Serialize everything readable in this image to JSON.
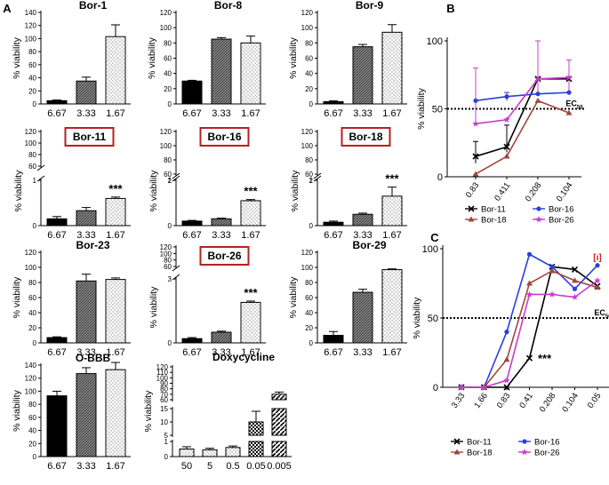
{
  "panel_labels": [
    "A",
    "B",
    "C"
  ],
  "colors": {
    "bor11": "#000000",
    "bor16": "#2b3fe0",
    "bor18": "#a0463c",
    "bor26": "#c83ccc",
    "box": "#b22222"
  },
  "chart_data": [
    {
      "id": "bor1",
      "type": "bar",
      "title": "Bor-1",
      "ylabel": "% viability",
      "categories": [
        "6.67",
        "3.33",
        "1.67"
      ],
      "values": [
        5,
        35,
        103
      ],
      "errors": [
        1,
        6,
        18
      ],
      "ylim": [
        0,
        140
      ],
      "yticks": [
        "0",
        "20",
        "40",
        "60",
        "80",
        "100",
        "120",
        "140"
      ]
    },
    {
      "id": "bor8",
      "type": "bar",
      "title": "Bor-8",
      "ylabel": "% viability",
      "categories": [
        "6.67",
        "3.33",
        "1.67"
      ],
      "values": [
        30,
        85,
        80
      ],
      "errors": [
        1,
        2,
        9
      ],
      "ylim": [
        0,
        120
      ],
      "yticks": [
        "0",
        "20",
        "40",
        "60",
        "80",
        "100",
        "120"
      ]
    },
    {
      "id": "bor9",
      "type": "bar",
      "title": "Bor-9",
      "ylabel": "% viability",
      "categories": [
        "6.67",
        "3.33",
        "1.67"
      ],
      "values": [
        3,
        75,
        94
      ],
      "errors": [
        1,
        3,
        10
      ],
      "ylim": [
        0,
        120
      ],
      "yticks": [
        "0",
        "20",
        "40",
        "60",
        "80",
        "100",
        "120"
      ]
    },
    {
      "id": "bor11",
      "type": "bar",
      "title": "Bor-11",
      "boxed": true,
      "ylabel": "% viability",
      "categories": [
        "6.67",
        "3.33",
        "1.67"
      ],
      "values": [
        0.15,
        0.33,
        0.6
      ],
      "errors": [
        0.05,
        0.07,
        0.03
      ],
      "upper_ticks": [
        "60",
        "80",
        "100",
        "120"
      ],
      "lower_ticks": [
        "0",
        "1"
      ],
      "lower_max": 1,
      "stars": "***"
    },
    {
      "id": "bor16",
      "type": "bar",
      "title": "Bor-16",
      "boxed": true,
      "ylabel": "% viability",
      "categories": [
        "6.67",
        "3.33",
        "1.67"
      ],
      "values": [
        0.2,
        0.3,
        1.1
      ],
      "errors": [
        0.03,
        0.03,
        0.05
      ],
      "upper_ticks": [
        "60",
        "80",
        "100",
        "120"
      ],
      "lower_ticks": [
        "0",
        "1",
        "2"
      ],
      "lower_max": 2,
      "stars": "***"
    },
    {
      "id": "bor18",
      "type": "bar",
      "title": "Bor-18",
      "boxed": true,
      "ylabel": "% viability",
      "categories": [
        "6.67",
        "3.33",
        "1.67"
      ],
      "values": [
        0.15,
        0.5,
        1.3
      ],
      "errors": [
        0.05,
        0.05,
        0.4
      ],
      "upper_ticks": [
        "60",
        "80",
        "100",
        "120"
      ],
      "lower_ticks": [
        "0",
        "1",
        "2"
      ],
      "lower_max": 2,
      "stars": "***"
    },
    {
      "id": "bor23",
      "type": "bar",
      "title": "Bor-23",
      "ylabel": "% viability",
      "categories": [
        "6.67",
        "3.33",
        "1.67"
      ],
      "values": [
        7,
        82,
        84
      ],
      "errors": [
        1,
        9,
        2
      ],
      "ylim": [
        0,
        120
      ],
      "yticks": [
        "0",
        "20",
        "40",
        "60",
        "80",
        "100",
        "120"
      ]
    },
    {
      "id": "bor26",
      "type": "bar",
      "title": "Bor-26",
      "boxed": true,
      "ylabel": "% viability",
      "categories": [
        "6.67",
        "3.33",
        "1.67"
      ],
      "values": [
        0.2,
        0.5,
        1.9
      ],
      "errors": [
        0.05,
        0.05,
        0.06
      ],
      "upper_ticks": [
        "60",
        "80",
        "100",
        "120"
      ],
      "lower_ticks": [
        "0",
        "3"
      ],
      "lower_max": 3,
      "stars": "***"
    },
    {
      "id": "bor29",
      "type": "bar",
      "title": "Bor-29",
      "ylabel": "% viability",
      "categories": [
        "6.67",
        "3.33",
        "1.67"
      ],
      "values": [
        10,
        67,
        97
      ],
      "errors": [
        5,
        4,
        1
      ],
      "ylim": [
        0,
        120
      ],
      "yticks": [
        "0",
        "20",
        "40",
        "60",
        "80",
        "100",
        "120"
      ]
    },
    {
      "id": "obbb",
      "type": "bar",
      "title": "O-BBB",
      "ylabel": "% viability",
      "categories": [
        "6.67",
        "3.33",
        "1.67"
      ],
      "values": [
        93,
        127,
        133
      ],
      "errors": [
        7,
        9,
        11
      ],
      "ylim": [
        0,
        140
      ],
      "yticks": [
        "0",
        "20",
        "40",
        "60",
        "80",
        "100",
        "120",
        "140"
      ]
    },
    {
      "id": "doxy",
      "type": "bar",
      "title": "Doxycycline",
      "ylabel": "% viability",
      "categories": [
        "50",
        "5",
        "0.5",
        "0.05",
        "0.005"
      ],
      "values": [
        0.5,
        0.45,
        0.6,
        10,
        70
      ],
      "errors": [
        0.15,
        0.1,
        0.1,
        4,
        4
      ],
      "upper_ticks": [
        "60",
        "70",
        "80",
        "90",
        "100",
        "110",
        "120"
      ],
      "mid_ticks": [
        "5",
        "10",
        "15"
      ],
      "lower_ticks": [
        "0",
        "1"
      ]
    },
    {
      "id": "lineB",
      "type": "line",
      "panel": "B",
      "ylabel": "% viability",
      "ylim": [
        0,
        100
      ],
      "yticks": [
        "0",
        "50",
        "100"
      ],
      "categories": [
        "0.83",
        "0.411",
        "0.208",
        "0.104"
      ],
      "ec_label": "EC",
      "ec_sub": "50",
      "ec_value": 50,
      "series": [
        {
          "name": "Bor-11",
          "color": "#000000",
          "marker": "x",
          "values": [
            15,
            22,
            72,
            72
          ]
        },
        {
          "name": "Bor-16",
          "color": "#2b3fe0",
          "marker": "circle",
          "values": [
            56,
            59,
            61,
            62
          ]
        },
        {
          "name": "Bor-18",
          "color": "#a0463c",
          "marker": "triangle",
          "values": [
            2,
            15,
            56,
            47
          ]
        },
        {
          "name": "Bor-26",
          "color": "#c83ccc",
          "marker": "star",
          "values": [
            39,
            42,
            72,
            73
          ]
        }
      ]
    },
    {
      "id": "lineC",
      "type": "line",
      "panel": "C",
      "ylabel": "% viability",
      "ylim": [
        0,
        100
      ],
      "yticks": [
        "0",
        "50",
        "100"
      ],
      "categories": [
        "3.33",
        "1.66",
        "0.83",
        "0.41",
        "0.208",
        "0.104",
        "0.05"
      ],
      "ec_label": "EC",
      "ec_sub": "50",
      "ec_value": 50,
      "stars": "***",
      "bracket": "[ı]",
      "series": [
        {
          "name": "Bor-11",
          "color": "#000000",
          "marker": "x",
          "values": [
            0,
            0,
            0,
            21,
            87,
            85,
            73
          ]
        },
        {
          "name": "Bor-16",
          "color": "#2b3fe0",
          "marker": "circle",
          "values": [
            0,
            0,
            40,
            96,
            87,
            71,
            88
          ]
        },
        {
          "name": "Bor-18",
          "color": "#a0463c",
          "marker": "triangle",
          "values": [
            0,
            0,
            20,
            75,
            84,
            77,
            72
          ]
        },
        {
          "name": "Bor-26",
          "color": "#c83ccc",
          "marker": "star",
          "values": [
            0,
            0,
            5,
            67,
            67,
            65,
            77
          ]
        }
      ]
    }
  ]
}
